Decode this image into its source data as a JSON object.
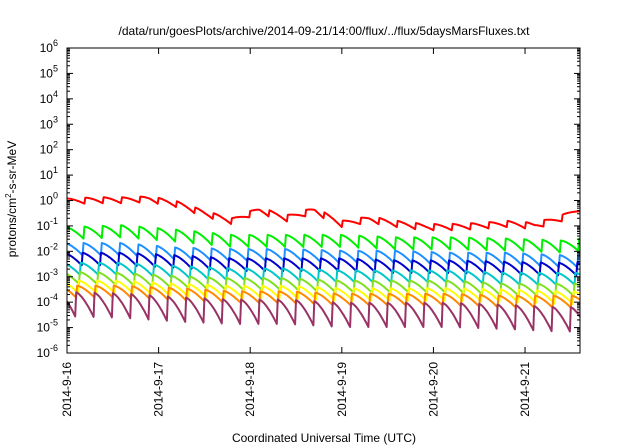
{
  "chart_data": {
    "type": "line",
    "title": "/data/run/goesPlots/archive/2014-09-21/14:00/flux/../flux/5daysMarsFluxes.txt",
    "xlabel": "Coordinated Universal Time (UTC)",
    "ylabel": "protons/cm²-s-sr-MeV",
    "ylabel_parts": [
      "protons/cm",
      "2",
      "-s-sr-MeV"
    ],
    "yscale": "log",
    "ylim_exponents": [
      -6,
      6
    ],
    "ytick_base": "10",
    "ytick_exponents": [
      "-6",
      "-5",
      "-4",
      "-3",
      "-2",
      "-1",
      "0",
      "1",
      "2",
      "3",
      "4",
      "5",
      "6"
    ],
    "x_unit": "days",
    "xlim_days": [
      0,
      5.6
    ],
    "xtick_labels": [
      "2014-9-16",
      "2014-9-17",
      "2014-9-18",
      "2014-9-19",
      "2014-9-20",
      "2014-9-21"
    ],
    "grid": false,
    "legend": "none",
    "series": [
      {
        "color": "#ff0000",
        "x": [
          0,
          0.3,
          0.6,
          0.9,
          1.2,
          1.5,
          1.8,
          2.1,
          2.4,
          2.7,
          3.0,
          3.3,
          3.6,
          3.9,
          4.2,
          4.5,
          4.8,
          5.1,
          5.4,
          5.6
        ],
        "y": [
          0.9,
          1.0,
          1.0,
          1.1,
          0.7,
          0.3,
          0.15,
          0.4,
          0.2,
          0.4,
          0.12,
          0.18,
          0.12,
          0.09,
          0.09,
          0.1,
          0.12,
          0.1,
          0.2,
          0.5
        ]
      },
      {
        "color": "#00ee00",
        "x": [
          0,
          0.6,
          1.2,
          1.8,
          2.4,
          3.0,
          3.6,
          4.2,
          4.8,
          5.4,
          5.6
        ],
        "y": [
          0.05,
          0.06,
          0.04,
          0.025,
          0.025,
          0.025,
          0.02,
          0.02,
          0.018,
          0.015,
          0.018
        ]
      },
      {
        "color": "#1e90ff",
        "x": [
          0,
          0.6,
          1.2,
          1.8,
          2.4,
          3.0,
          3.6,
          4.2,
          4.8,
          5.4,
          5.6
        ],
        "y": [
          0.012,
          0.012,
          0.008,
          0.007,
          0.007,
          0.006,
          0.006,
          0.005,
          0.005,
          0.004,
          0.004
        ]
      },
      {
        "color": "#0000cc",
        "x": [
          0,
          0.6,
          1.2,
          1.8,
          2.4,
          3.0,
          3.6,
          4.2,
          4.8,
          5.4,
          5.6
        ],
        "y": [
          0.005,
          0.005,
          0.004,
          0.003,
          0.003,
          0.003,
          0.0025,
          0.0025,
          0.0022,
          0.002,
          0.002
        ]
      },
      {
        "color": "#00c8c8",
        "x": [
          0,
          0.6,
          1.2,
          1.8,
          2.4,
          3.0,
          3.6,
          4.2,
          4.8,
          5.4,
          5.6
        ],
        "y": [
          0.002,
          0.002,
          0.0015,
          0.0012,
          0.0012,
          0.001,
          0.001,
          0.001,
          0.0008,
          0.0008,
          0.0008
        ]
      },
      {
        "color": "#80e020",
        "x": [
          0,
          0.6,
          1.2,
          1.8,
          2.4,
          3.0,
          3.6,
          4.2,
          4.8,
          5.4,
          5.6
        ],
        "y": [
          0.0009,
          0.0008,
          0.0006,
          0.0005,
          0.0005,
          0.0004,
          0.0004,
          0.0004,
          0.0003,
          0.0003,
          0.0003
        ]
      },
      {
        "color": "#ffff00",
        "x": [
          0,
          0.6,
          1.2,
          1.8,
          2.4,
          3.0,
          3.6,
          4.2,
          4.8,
          5.4,
          5.6
        ],
        "y": [
          0.0004,
          0.0004,
          0.0003,
          0.00025,
          0.00025,
          0.0002,
          0.0002,
          0.0002,
          0.00018,
          0.00015,
          0.00015
        ]
      },
      {
        "color": "#ff8800",
        "x": [
          0,
          0.6,
          1.2,
          1.8,
          2.4,
          3.0,
          3.6,
          4.2,
          4.8,
          5.4,
          5.6
        ],
        "y": [
          0.00025,
          0.00025,
          0.0002,
          0.00015,
          0.00015,
          0.00012,
          0.00012,
          0.00012,
          0.0001,
          0.0001,
          0.0001
        ]
      },
      {
        "color": "#993366",
        "x": [
          0,
          0.6,
          1.2,
          1.8,
          2.4,
          3.0,
          3.6,
          4.2,
          4.8,
          5.4,
          5.6
        ],
        "y": [
          8e-05,
          7e-05,
          5e-05,
          4e-05,
          4e-05,
          3e-05,
          3e-05,
          3e-05,
          2.5e-05,
          2e-05,
          2e-05
        ]
      }
    ]
  }
}
